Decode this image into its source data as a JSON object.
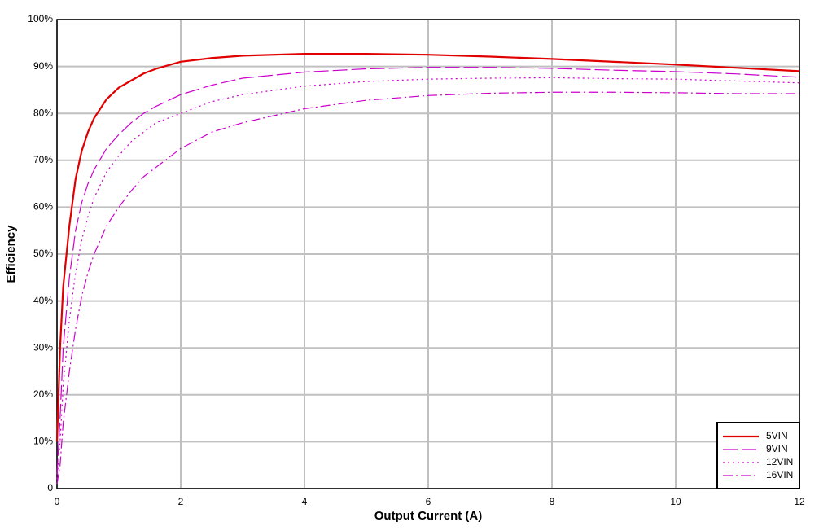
{
  "chart_data": {
    "type": "line",
    "xlabel": "Output Current (A)",
    "ylabel": "Efficiency",
    "x": [
      0,
      0.05,
      0.1,
      0.2,
      0.3,
      0.4,
      0.5,
      0.6,
      0.8,
      1,
      1.2,
      1.4,
      1.6,
      2,
      2.5,
      3,
      4,
      5,
      6,
      7,
      8,
      9,
      10,
      11,
      12
    ],
    "series": [
      {
        "name": "5VIN",
        "color": "#e00000",
        "dash": "solid",
        "values": [
          10,
          30,
          43,
          56,
          66,
          72,
          76,
          79,
          83,
          85.5,
          87,
          88.5,
          89.5,
          91,
          91.8,
          92.3,
          92.7,
          92.7,
          92.5,
          92.1,
          91.6,
          91,
          90.4,
          89.7,
          89
        ]
      },
      {
        "name": "9VIN",
        "color": "#cc00cc",
        "dash": "long-dash",
        "values": [
          3,
          15,
          30,
          45,
          55,
          61,
          65,
          68,
          72.5,
          75.5,
          78,
          80,
          81.5,
          84,
          86,
          87.5,
          88.8,
          89.5,
          89.8,
          89.8,
          89.6,
          89.2,
          88.9,
          88.4,
          87.7
        ]
      },
      {
        "name": "12VIN",
        "color": "#cc00cc",
        "dash": "dotted",
        "values": [
          2,
          10,
          22,
          36,
          46,
          53,
          58,
          62,
          67.5,
          71,
          74,
          76,
          78,
          80,
          82.5,
          84,
          85.8,
          86.8,
          87.3,
          87.5,
          87.6,
          87.4,
          87.3,
          86.9,
          86.5
        ]
      },
      {
        "name": "16VIN",
        "color": "#cc00cc",
        "dash": "dash-dot",
        "values": [
          1,
          5,
          14,
          25,
          34,
          41,
          46,
          50,
          56,
          60,
          63.5,
          66.5,
          68.5,
          72.5,
          76,
          78,
          81,
          82.8,
          83.8,
          84.3,
          84.5,
          84.5,
          84.4,
          84.2,
          84.2
        ]
      }
    ],
    "xlim": [
      0,
      12
    ],
    "xticks": [
      0,
      2,
      4,
      6,
      8,
      10,
      12
    ],
    "ylim": [
      0,
      100
    ],
    "yticks": [
      0,
      {
        "value": 10,
        "label": "10%"
      },
      {
        "value": 20,
        "label": "20%"
      },
      {
        "value": 30,
        "label": "30%"
      },
      {
        "value": 40,
        "label": "40%"
      },
      {
        "value": 50,
        "label": "50%"
      },
      {
        "value": 60,
        "label": "60%"
      },
      {
        "value": 70,
        "label": "70%"
      },
      {
        "value": 80,
        "label": "80%"
      },
      {
        "value": 90,
        "label": "90%"
      },
      {
        "value": 100,
        "label": "100%"
      }
    ],
    "grid": true,
    "legend": "lower-right"
  }
}
